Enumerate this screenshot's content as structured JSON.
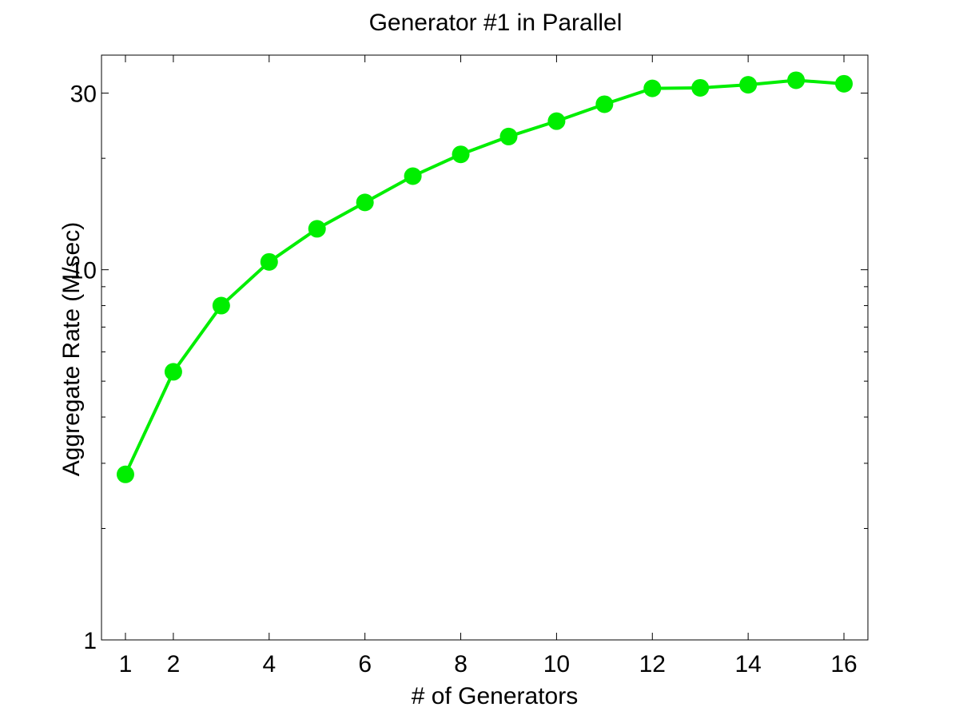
{
  "chart_data": {
    "type": "line",
    "title": "Generator #1 in Parallel",
    "xlabel": "# of Generators",
    "ylabel": "Aggregate Rate (M/sec)",
    "xlim": [
      0.5,
      16.5
    ],
    "ylim": [
      1,
      38
    ],
    "yscale": "log",
    "grid": false,
    "legend": "none",
    "xticks": [
      1,
      2,
      4,
      6,
      8,
      10,
      12,
      14,
      16
    ],
    "yticks": [
      1,
      10,
      30
    ],
    "ytick_labels": [
      "1",
      "10",
      "30"
    ],
    "line_color": "#00ee00",
    "series": [
      {
        "x": [
          1,
          2,
          3,
          4,
          5,
          6,
          7,
          8,
          9,
          10,
          11,
          12,
          13,
          14,
          15,
          16
        ],
        "values": [
          2.8,
          5.3,
          8.0,
          10.5,
          12.9,
          15.2,
          17.9,
          20.5,
          22.9,
          25.2,
          28.0,
          30.9,
          31.0,
          31.6,
          32.5,
          31.8
        ]
      }
    ]
  }
}
